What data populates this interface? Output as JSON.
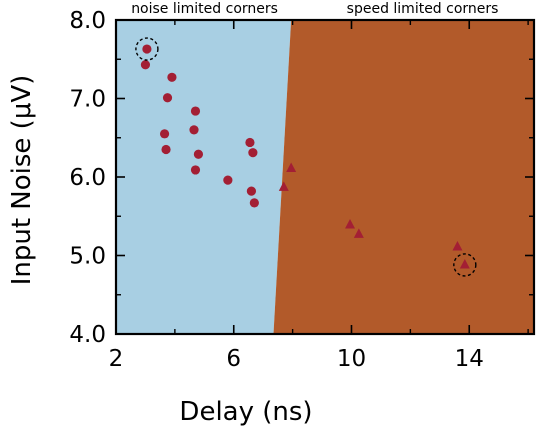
{
  "chart_data": {
    "type": "scatter",
    "xlabel": "Delay (ns)",
    "ylabel": "Input Noise (μV)",
    "xlim": [
      2,
      16.2
    ],
    "ylim": [
      4.0,
      8.0
    ],
    "x_ticks": [
      2,
      6,
      10,
      14
    ],
    "x_tick_labels": [
      "2",
      "6",
      "10",
      "14"
    ],
    "y_ticks": [
      4.0,
      5.0,
      6.0,
      7.0,
      8.0
    ],
    "y_tick_labels": [
      "4.0",
      "5.0",
      "6.0",
      "7.0",
      "8.0"
    ],
    "grid": false,
    "legend": "none",
    "regions": [
      {
        "label": "noise limited corners",
        "color": "#a8cfe3",
        "boundary": [
          [
            7.35,
            4.0
          ],
          [
            7.95,
            8.0
          ]
        ],
        "side": "left"
      },
      {
        "label": "speed limited corners",
        "color": "#b25a2a",
        "boundary": [
          [
            7.35,
            4.0
          ],
          [
            7.95,
            8.0
          ]
        ],
        "side": "right"
      }
    ],
    "series": [
      {
        "marker": "circle",
        "color": "#a31f34",
        "points": [
          {
            "x": 3.05,
            "y": 7.63
          },
          {
            "x": 3.0,
            "y": 7.43
          },
          {
            "x": 3.9,
            "y": 7.27
          },
          {
            "x": 3.75,
            "y": 7.01
          },
          {
            "x": 4.7,
            "y": 6.84
          },
          {
            "x": 4.65,
            "y": 6.6
          },
          {
            "x": 3.65,
            "y": 6.55
          },
          {
            "x": 3.7,
            "y": 6.35
          },
          {
            "x": 4.8,
            "y": 6.29
          },
          {
            "x": 4.7,
            "y": 6.09
          },
          {
            "x": 5.8,
            "y": 5.96
          },
          {
            "x": 6.55,
            "y": 6.44
          },
          {
            "x": 6.65,
            "y": 6.31
          },
          {
            "x": 6.6,
            "y": 5.82
          },
          {
            "x": 6.7,
            "y": 5.67
          }
        ]
      },
      {
        "marker": "triangle",
        "color": "#a31f34",
        "points": [
          {
            "x": 7.95,
            "y": 6.11
          },
          {
            "x": 7.7,
            "y": 5.87
          },
          {
            "x": 9.95,
            "y": 5.39
          },
          {
            "x": 10.25,
            "y": 5.27
          },
          {
            "x": 13.6,
            "y": 5.11
          },
          {
            "x": 13.85,
            "y": 4.88
          }
        ]
      }
    ],
    "highlighted": [
      {
        "x": 3.05,
        "y": 7.63
      },
      {
        "x": 13.85,
        "y": 4.88
      }
    ]
  }
}
